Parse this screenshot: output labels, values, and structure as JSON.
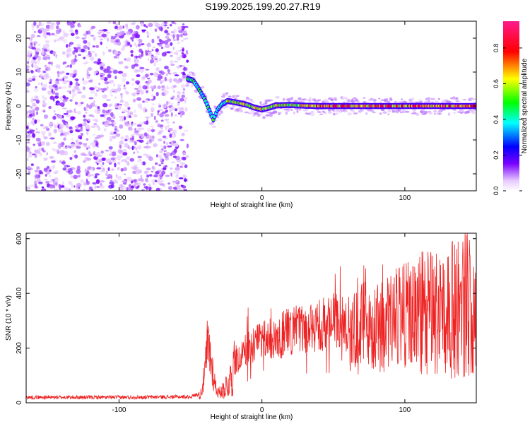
{
  "title": "S199.2025.199.20.27.R19",
  "chart_data": [
    {
      "type": "heatmap",
      "xlabel": "Height of straight line (km)",
      "ylabel": "Frequency (Hz)",
      "xlim": [
        -165,
        150
      ],
      "ylim": [
        -25,
        25
      ],
      "xticks": [
        -100,
        0,
        100
      ],
      "yticks": [
        -20,
        -10,
        0,
        10,
        20
      ],
      "colorbar": {
        "label": "Normalized spectral amplitude",
        "range": [
          0,
          0.95
        ],
        "ticks": [
          0.0,
          0.2,
          0.4,
          0.6,
          0.8
        ],
        "tick_labels": [
          "0.0",
          "0.2",
          "0.4",
          "0.6",
          "0.8"
        ],
        "colors": [
          "#e6c8ff",
          "#7a00ff",
          "#0000ff",
          "#00ffff",
          "#00ff00",
          "#ffff00",
          "#ff0000",
          "#ff00aa"
        ]
      },
      "noise_region_x": [
        -165,
        -52
      ],
      "ridge": {
        "x": [
          -52,
          -48,
          -44,
          -40,
          -37,
          -34,
          -31,
          -28,
          -24,
          -20,
          -15,
          -10,
          -5,
          0,
          5,
          10,
          20,
          30,
          40,
          60,
          80,
          100,
          120,
          140,
          150
        ],
        "y": [
          8,
          7.5,
          5,
          2,
          -1,
          -4,
          -1,
          0.5,
          1.5,
          1.2,
          0.8,
          0.3,
          -0.5,
          -1,
          -0.5,
          0.2,
          0.3,
          0.1,
          0,
          0,
          0,
          0,
          0,
          0,
          0
        ]
      }
    },
    {
      "type": "line",
      "xlabel": "Height of straight line (km)",
      "ylabel": "SNR (10 * v/v)",
      "xlim": [
        -165,
        150
      ],
      "ylim": [
        0,
        620
      ],
      "xticks": [
        -100,
        0,
        100
      ],
      "yticks": [
        0,
        200,
        400,
        600
      ],
      "color": "#ee2222",
      "x": [
        -165,
        -150,
        -100,
        -50,
        -43,
        -40,
        -38,
        -36,
        -34,
        -32,
        -30,
        -25,
        -20,
        -10,
        0,
        10,
        20,
        30,
        40,
        50,
        60,
        70,
        80,
        90,
        100,
        110,
        120,
        130,
        140,
        150
      ],
      "y": [
        20,
        20,
        20,
        22,
        35,
        120,
        250,
        200,
        120,
        60,
        40,
        90,
        150,
        200,
        220,
        240,
        260,
        270,
        280,
        300,
        280,
        290,
        270,
        300,
        320,
        320,
        330,
        330,
        360,
        370
      ]
    }
  ]
}
